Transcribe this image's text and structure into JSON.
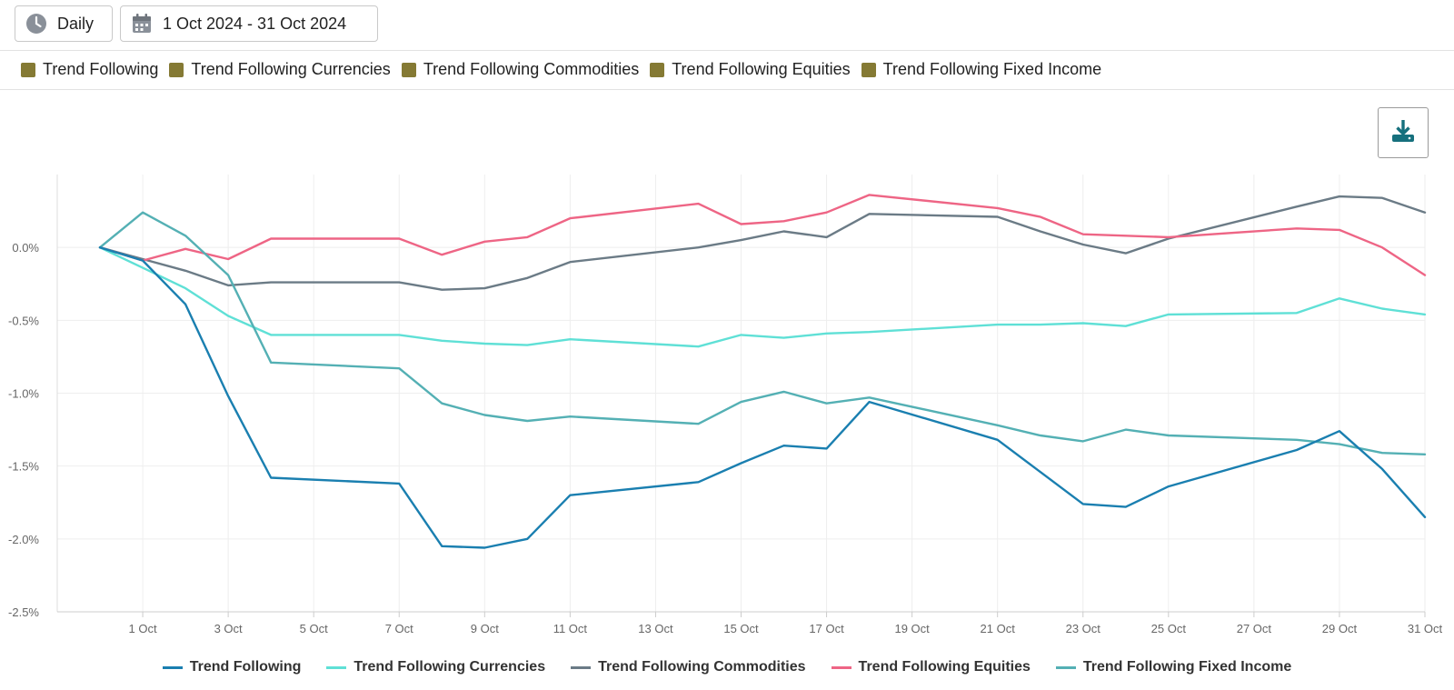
{
  "toolbar": {
    "period_label": "Daily",
    "date_range_label": "1 Oct 2024 - 31 Oct 2024",
    "period_icon": "clock-icon",
    "date_icon": "calendar-icon"
  },
  "download": {
    "icon": "download-icon"
  },
  "legend_swatch_color": "#857a34",
  "chart_data": {
    "type": "line",
    "title": "",
    "xlabel": "",
    "ylabel": "",
    "grid": true,
    "legend_position": "bottom",
    "x": [
      "30 Sep",
      "1 Oct",
      "2 Oct",
      "3 Oct",
      "4 Oct",
      "7 Oct",
      "8 Oct",
      "9 Oct",
      "10 Oct",
      "11 Oct",
      "14 Oct",
      "15 Oct",
      "16 Oct",
      "17 Oct",
      "18 Oct",
      "21 Oct",
      "22 Oct",
      "23 Oct",
      "24 Oct",
      "25 Oct",
      "28 Oct",
      "29 Oct",
      "30 Oct",
      "31 Oct"
    ],
    "x_day": [
      0,
      1,
      2,
      3,
      4,
      7,
      8,
      9,
      10,
      11,
      14,
      15,
      16,
      17,
      18,
      21,
      22,
      23,
      24,
      25,
      28,
      29,
      30,
      31
    ],
    "x_ticks": [
      {
        "day": 1,
        "label": "1 Oct"
      },
      {
        "day": 3,
        "label": "3 Oct"
      },
      {
        "day": 5,
        "label": "5 Oct"
      },
      {
        "day": 7,
        "label": "7 Oct"
      },
      {
        "day": 9,
        "label": "9 Oct"
      },
      {
        "day": 11,
        "label": "11 Oct"
      },
      {
        "day": 13,
        "label": "13 Oct"
      },
      {
        "day": 15,
        "label": "15 Oct"
      },
      {
        "day": 17,
        "label": "17 Oct"
      },
      {
        "day": 19,
        "label": "19 Oct"
      },
      {
        "day": 21,
        "label": "21 Oct"
      },
      {
        "day": 23,
        "label": "23 Oct"
      },
      {
        "day": 25,
        "label": "25 Oct"
      },
      {
        "day": 27,
        "label": "27 Oct"
      },
      {
        "day": 29,
        "label": "29 Oct"
      },
      {
        "day": 31,
        "label": "31 Oct"
      }
    ],
    "x_range": [
      -1,
      31
    ],
    "ylim": [
      -2.5,
      0.5
    ],
    "y_ticks": [
      {
        "value": 0.0,
        "label": "0.0%"
      },
      {
        "value": -0.5,
        "label": "-0.5%"
      },
      {
        "value": -1.0,
        "label": "-1.0%"
      },
      {
        "value": -1.5,
        "label": "-1.5%"
      },
      {
        "value": -2.0,
        "label": "-2.0%"
      },
      {
        "value": -2.5,
        "label": "-2.5%"
      }
    ],
    "series": [
      {
        "name": "Trend Following",
        "color": "#1a7fb0",
        "values": [
          0.0,
          -0.09,
          -0.39,
          -1.02,
          -1.58,
          -1.62,
          -2.05,
          -2.06,
          -2.0,
          -1.7,
          -1.61,
          -1.48,
          -1.36,
          -1.38,
          -1.06,
          -1.32,
          -1.54,
          -1.76,
          -1.78,
          -1.64,
          -1.39,
          -1.26,
          -1.52,
          -1.85
        ]
      },
      {
        "name": "Trend Following Currencies",
        "color": "#5fe0d6",
        "values": [
          0.0,
          -0.14,
          -0.28,
          -0.47,
          -0.6,
          -0.6,
          -0.64,
          -0.66,
          -0.67,
          -0.63,
          -0.68,
          -0.6,
          -0.62,
          -0.59,
          -0.58,
          -0.53,
          -0.53,
          -0.52,
          -0.54,
          -0.46,
          -0.45,
          -0.35,
          -0.42,
          -0.46
        ]
      },
      {
        "name": "Trend Following Commodities",
        "color": "#6b7b86",
        "values": [
          0.0,
          -0.08,
          -0.16,
          -0.26,
          -0.24,
          -0.24,
          -0.29,
          -0.28,
          -0.21,
          -0.1,
          0.0,
          0.05,
          0.11,
          0.07,
          0.23,
          0.21,
          0.11,
          0.02,
          -0.04,
          0.06,
          0.28,
          0.35,
          0.34,
          0.24
        ]
      },
      {
        "name": "Trend Following Equities",
        "color": "#ee6585",
        "values": [
          0.0,
          -0.09,
          -0.01,
          -0.08,
          0.06,
          0.06,
          -0.05,
          0.04,
          0.07,
          0.2,
          0.3,
          0.16,
          0.18,
          0.24,
          0.36,
          0.27,
          0.21,
          0.09,
          0.08,
          0.07,
          0.13,
          0.12,
          0.0,
          -0.19
        ]
      },
      {
        "name": "Trend Following Fixed Income",
        "color": "#54b0b4",
        "values": [
          0.0,
          0.24,
          0.08,
          -0.19,
          -0.79,
          -0.83,
          -1.07,
          -1.15,
          -1.19,
          -1.16,
          -1.21,
          -1.06,
          -0.99,
          -1.07,
          -1.03,
          -1.22,
          -1.29,
          -1.33,
          -1.25,
          -1.29,
          -1.32,
          -1.35,
          -1.41,
          -1.42
        ]
      }
    ]
  }
}
